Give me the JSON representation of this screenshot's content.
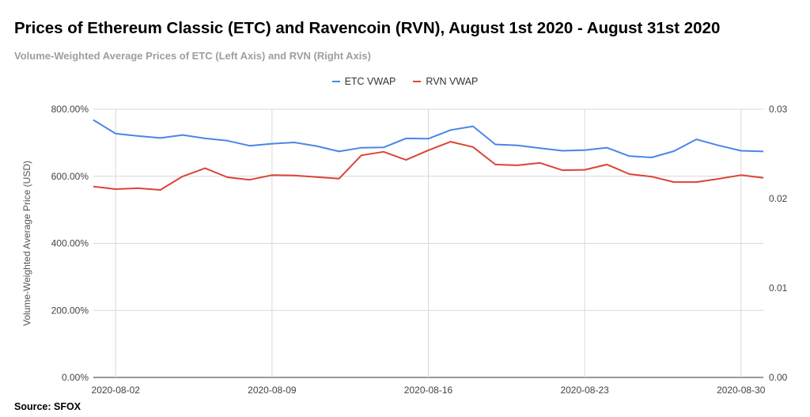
{
  "title": "Prices of Ethereum Classic (ETC) and Ravencoin (RVN), August 1st 2020 - August 31st 2020",
  "subtitle": "Volume-Weighted Average Prices of ETC (Left Axis) and RVN (Right Axis)",
  "source": "Source: SFOX",
  "chart_data": {
    "type": "line",
    "title": "Prices of Ethereum Classic (ETC) and Ravencoin (RVN), August 1st 2020 - August 31st 2020",
    "subtitle": "Volume-Weighted Average Prices of ETC (Left Axis) and RVN (Right Axis)",
    "ylabel": "Volume-Weighted Average Price (USD)",
    "x": [
      "2020-08-01",
      "2020-08-02",
      "2020-08-03",
      "2020-08-04",
      "2020-08-05",
      "2020-08-06",
      "2020-08-07",
      "2020-08-08",
      "2020-08-09",
      "2020-08-10",
      "2020-08-11",
      "2020-08-12",
      "2020-08-13",
      "2020-08-14",
      "2020-08-15",
      "2020-08-16",
      "2020-08-17",
      "2020-08-18",
      "2020-08-19",
      "2020-08-20",
      "2020-08-21",
      "2020-08-22",
      "2020-08-23",
      "2020-08-24",
      "2020-08-25",
      "2020-08-26",
      "2020-08-27",
      "2020-08-28",
      "2020-08-29",
      "2020-08-30",
      "2020-08-31"
    ],
    "x_ticks": [
      "2020-08-02",
      "2020-08-09",
      "2020-08-16",
      "2020-08-23",
      "2020-08-30"
    ],
    "y_left": {
      "ylim": [
        0,
        800
      ],
      "ticks": [
        "0.00%",
        "200.00%",
        "400.00%",
        "600.00%",
        "800.00%"
      ]
    },
    "y_right": {
      "ylim": [
        0,
        0.03
      ],
      "ticks": [
        "0.00",
        "0.01",
        "0.02",
        "0.03"
      ]
    },
    "legend_position": "top-center",
    "grid": true,
    "series": [
      {
        "name": "ETC VWAP",
        "axis": "left",
        "color": "#4a86e8",
        "values": [
          768,
          727,
          720,
          714,
          723,
          713,
          706,
          691,
          697,
          701,
          690,
          674,
          685,
          686,
          713,
          712,
          738,
          749,
          695,
          692,
          684,
          676,
          678,
          685,
          660,
          656,
          675,
          710,
          692,
          676,
          674
        ]
      },
      {
        "name": "RVN VWAP",
        "axis": "right",
        "color": "#db4437",
        "values": [
          0.02135,
          0.02106,
          0.02116,
          0.02097,
          0.02249,
          0.0234,
          0.02239,
          0.02211,
          0.02263,
          0.02258,
          0.02241,
          0.02223,
          0.02484,
          0.02524,
          0.02433,
          0.02541,
          0.02636,
          0.02577,
          0.02381,
          0.02373,
          0.02399,
          0.02318,
          0.02322,
          0.02381,
          0.02274,
          0.02246,
          0.02185,
          0.02185,
          0.02221,
          0.02263,
          0.02233
        ]
      }
    ]
  }
}
